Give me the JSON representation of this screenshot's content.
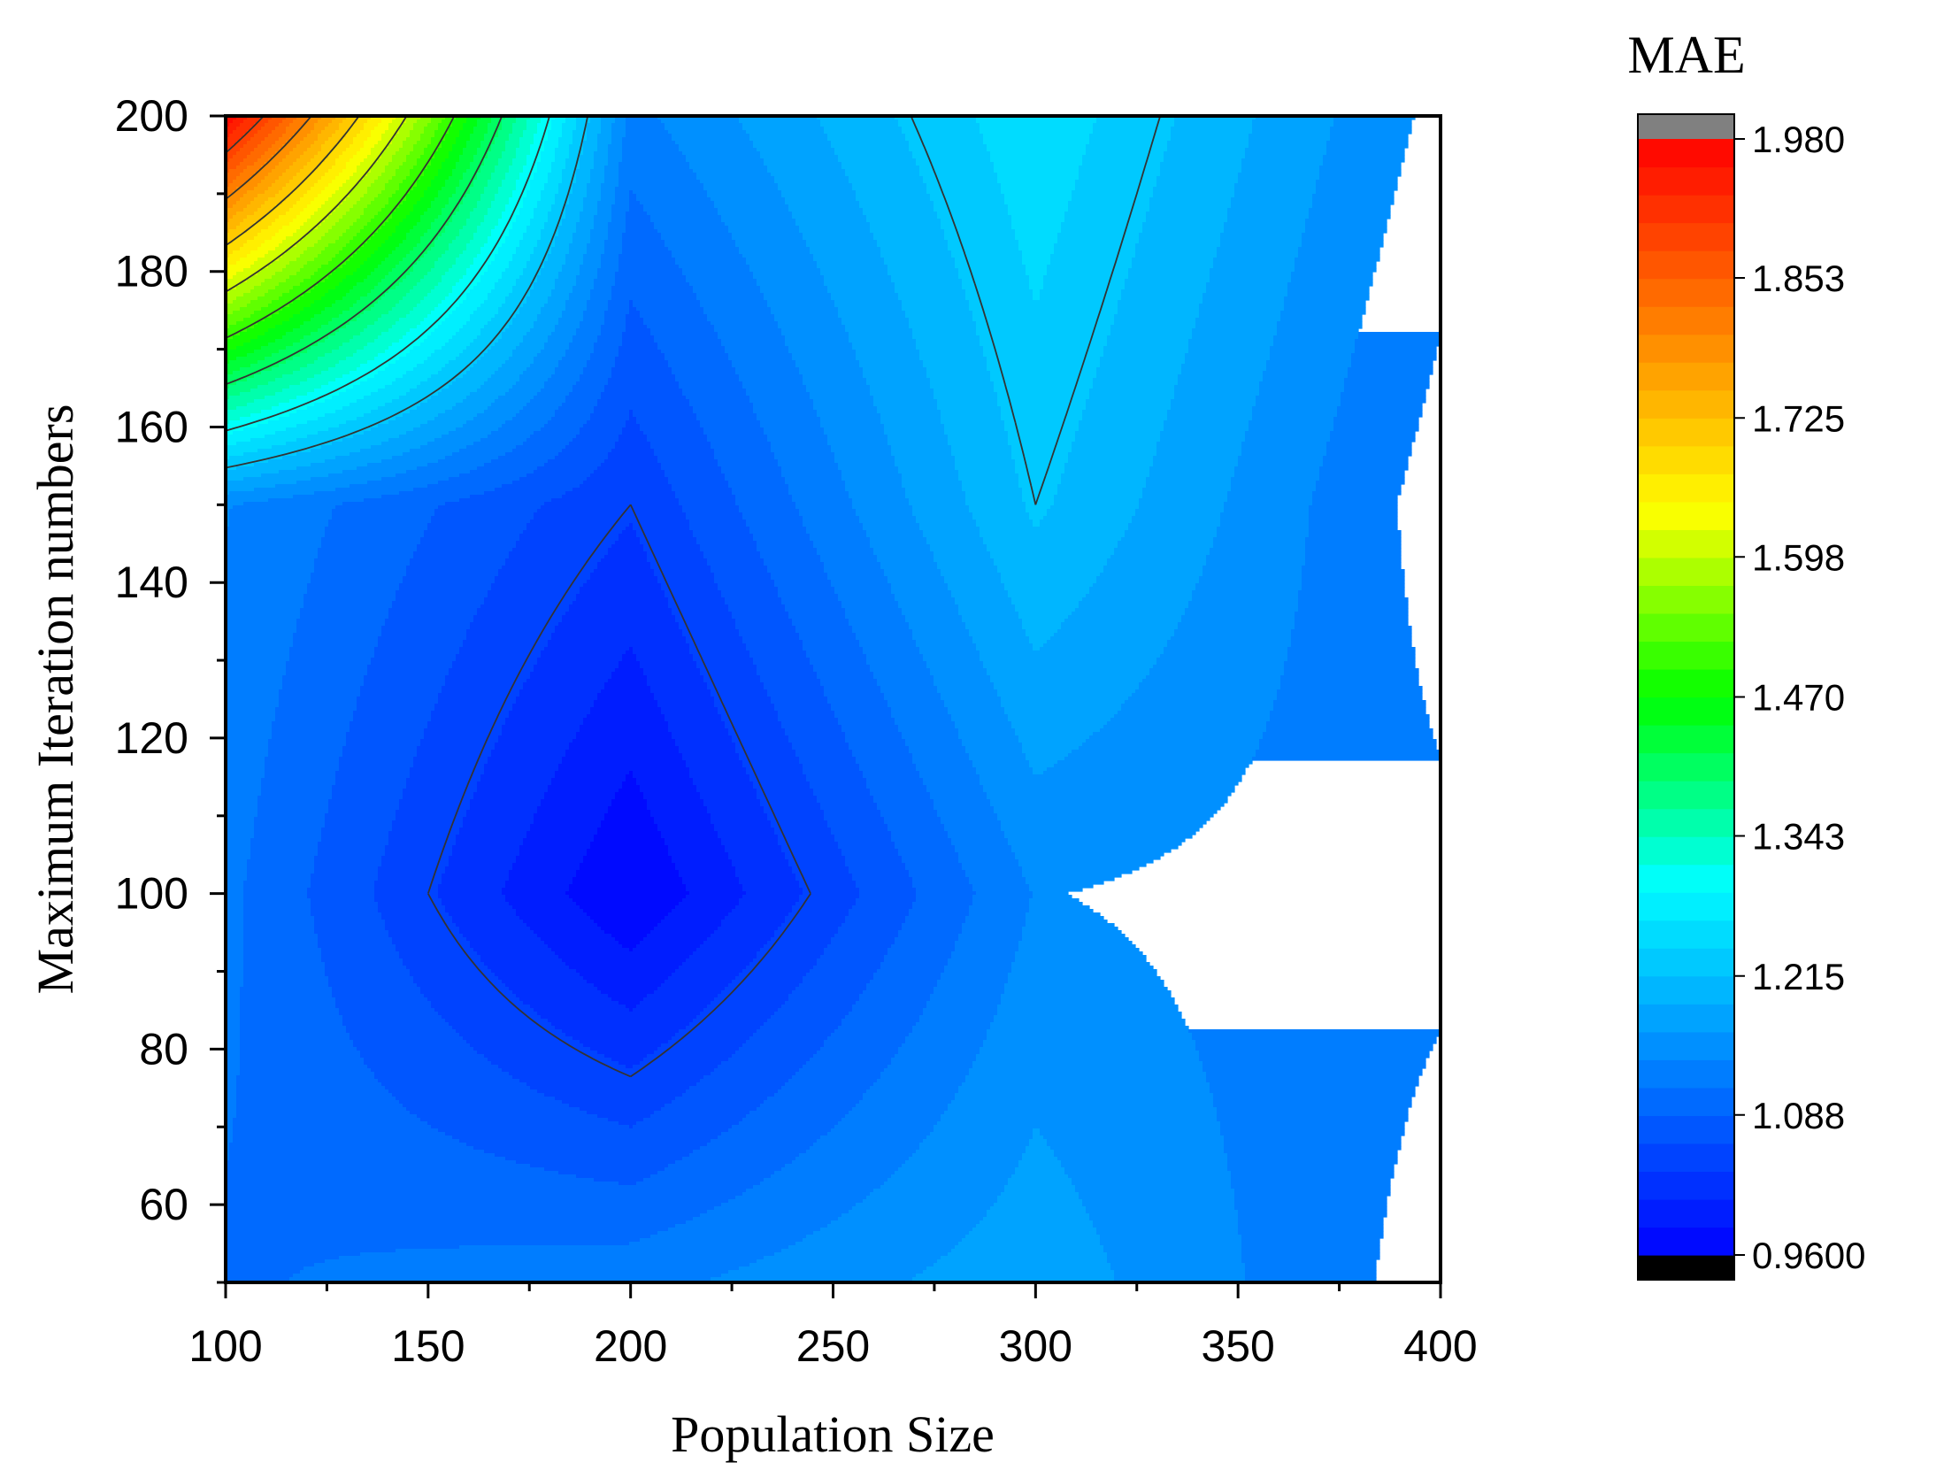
{
  "chart_data": {
    "type": "heatmap",
    "subtype": "filled-contour",
    "xlabel": "Population Size",
    "ylabel": "Maximum Iteration numbers",
    "colorbar_title": "MAE",
    "xlim": [
      100,
      400
    ],
    "ylim": [
      50,
      200
    ],
    "xticks": [
      100,
      150,
      200,
      250,
      300,
      350,
      400
    ],
    "yticks": [
      60,
      80,
      100,
      120,
      140,
      160,
      180,
      200
    ],
    "x": [
      100,
      200,
      300,
      400
    ],
    "y": [
      50,
      100,
      150,
      200
    ],
    "z": [
      [
        1.11,
        1.13,
        1.18,
        1.1
      ],
      [
        1.12,
        0.96,
        1.14,
        1.12
      ],
      [
        1.14,
        1.04,
        1.22,
        1.1
      ],
      [
        1.98,
        1.13,
        1.26,
        1.13
      ]
    ],
    "levels_min": 0.96,
    "levels_max": 1.98,
    "level_step": 0.0255,
    "contour_lines": [
      1.04,
      1.22,
      1.3,
      1.4,
      1.5,
      1.6,
      1.7,
      1.8,
      1.9
    ],
    "colorbar_ticks": [
      "0.9600",
      "1.088",
      "1.215",
      "1.343",
      "1.470",
      "1.598",
      "1.725",
      "1.853",
      "1.980"
    ],
    "colorbar_under_color": "#000000",
    "colorbar_over_color": "#808080",
    "colormap": [
      "#0000ff",
      "#0080ff",
      "#00ffff",
      "#00ff00",
      "#ffff00",
      "#ff8000",
      "#ff0000"
    ]
  }
}
